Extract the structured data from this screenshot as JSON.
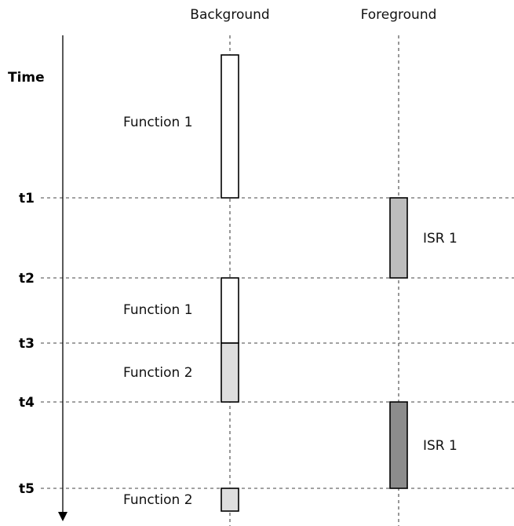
{
  "columns": {
    "background": "Background",
    "foreground": "Foreground"
  },
  "axis_label": "Time",
  "time_markers": [
    "t1",
    "t2",
    "t3",
    "t4",
    "t5"
  ],
  "blocks": [
    {
      "column": "background",
      "from": "start",
      "to": "t1",
      "label": "Function 1",
      "fill": "#ffffff"
    },
    {
      "column": "foreground",
      "from": "t1",
      "to": "t2",
      "label": "ISR 1",
      "fill": "#bdbdbd"
    },
    {
      "column": "background",
      "from": "t2",
      "to": "t3",
      "label": "Function 1",
      "fill": "#ffffff"
    },
    {
      "column": "background",
      "from": "t3",
      "to": "t4",
      "label": "Function 2",
      "fill": "#dedede"
    },
    {
      "column": "foreground",
      "from": "t4",
      "to": "t5",
      "label": "ISR 1",
      "fill": "#8c8c8c"
    },
    {
      "column": "background",
      "from": "t5",
      "to": "end",
      "label": "Function 2",
      "fill": "#dedede"
    }
  ],
  "colors": {
    "outline": "#000000",
    "gridline": "#444444"
  }
}
